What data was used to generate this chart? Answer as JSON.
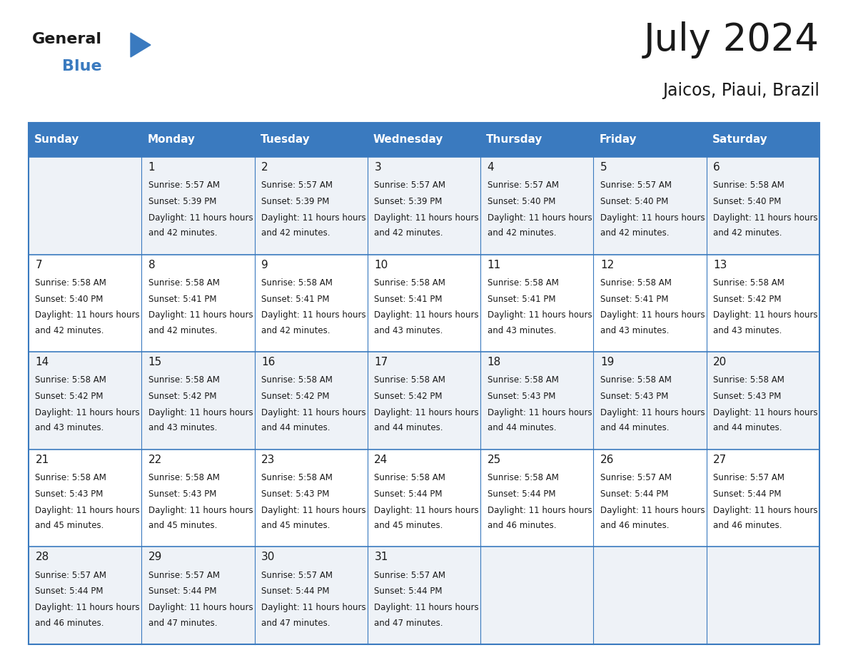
{
  "title": "July 2024",
  "subtitle": "Jaicos, Piaui, Brazil",
  "header_bg": "#3a7abf",
  "header_text": "#ffffff",
  "row_bg_even": "#eef2f7",
  "row_bg_odd": "#ffffff",
  "grid_color": "#3a7abf",
  "text_color": "#1a1a1a",
  "day_headers": [
    "Sunday",
    "Monday",
    "Tuesday",
    "Wednesday",
    "Thursday",
    "Friday",
    "Saturday"
  ],
  "days": [
    {
      "day": 1,
      "col": 1,
      "row": 0,
      "sunrise": "5:57 AM",
      "sunset": "5:39 PM",
      "daylight": "11 hours and 42 minutes."
    },
    {
      "day": 2,
      "col": 2,
      "row": 0,
      "sunrise": "5:57 AM",
      "sunset": "5:39 PM",
      "daylight": "11 hours and 42 minutes."
    },
    {
      "day": 3,
      "col": 3,
      "row": 0,
      "sunrise": "5:57 AM",
      "sunset": "5:39 PM",
      "daylight": "11 hours and 42 minutes."
    },
    {
      "day": 4,
      "col": 4,
      "row": 0,
      "sunrise": "5:57 AM",
      "sunset": "5:40 PM",
      "daylight": "11 hours and 42 minutes."
    },
    {
      "day": 5,
      "col": 5,
      "row": 0,
      "sunrise": "5:57 AM",
      "sunset": "5:40 PM",
      "daylight": "11 hours and 42 minutes."
    },
    {
      "day": 6,
      "col": 6,
      "row": 0,
      "sunrise": "5:58 AM",
      "sunset": "5:40 PM",
      "daylight": "11 hours and 42 minutes."
    },
    {
      "day": 7,
      "col": 0,
      "row": 1,
      "sunrise": "5:58 AM",
      "sunset": "5:40 PM",
      "daylight": "11 hours and 42 minutes."
    },
    {
      "day": 8,
      "col": 1,
      "row": 1,
      "sunrise": "5:58 AM",
      "sunset": "5:41 PM",
      "daylight": "11 hours and 42 minutes."
    },
    {
      "day": 9,
      "col": 2,
      "row": 1,
      "sunrise": "5:58 AM",
      "sunset": "5:41 PM",
      "daylight": "11 hours and 42 minutes."
    },
    {
      "day": 10,
      "col": 3,
      "row": 1,
      "sunrise": "5:58 AM",
      "sunset": "5:41 PM",
      "daylight": "11 hours and 43 minutes."
    },
    {
      "day": 11,
      "col": 4,
      "row": 1,
      "sunrise": "5:58 AM",
      "sunset": "5:41 PM",
      "daylight": "11 hours and 43 minutes."
    },
    {
      "day": 12,
      "col": 5,
      "row": 1,
      "sunrise": "5:58 AM",
      "sunset": "5:41 PM",
      "daylight": "11 hours and 43 minutes."
    },
    {
      "day": 13,
      "col": 6,
      "row": 1,
      "sunrise": "5:58 AM",
      "sunset": "5:42 PM",
      "daylight": "11 hours and 43 minutes."
    },
    {
      "day": 14,
      "col": 0,
      "row": 2,
      "sunrise": "5:58 AM",
      "sunset": "5:42 PM",
      "daylight": "11 hours and 43 minutes."
    },
    {
      "day": 15,
      "col": 1,
      "row": 2,
      "sunrise": "5:58 AM",
      "sunset": "5:42 PM",
      "daylight": "11 hours and 43 minutes."
    },
    {
      "day": 16,
      "col": 2,
      "row": 2,
      "sunrise": "5:58 AM",
      "sunset": "5:42 PM",
      "daylight": "11 hours and 44 minutes."
    },
    {
      "day": 17,
      "col": 3,
      "row": 2,
      "sunrise": "5:58 AM",
      "sunset": "5:42 PM",
      "daylight": "11 hours and 44 minutes."
    },
    {
      "day": 18,
      "col": 4,
      "row": 2,
      "sunrise": "5:58 AM",
      "sunset": "5:43 PM",
      "daylight": "11 hours and 44 minutes."
    },
    {
      "day": 19,
      "col": 5,
      "row": 2,
      "sunrise": "5:58 AM",
      "sunset": "5:43 PM",
      "daylight": "11 hours and 44 minutes."
    },
    {
      "day": 20,
      "col": 6,
      "row": 2,
      "sunrise": "5:58 AM",
      "sunset": "5:43 PM",
      "daylight": "11 hours and 44 minutes."
    },
    {
      "day": 21,
      "col": 0,
      "row": 3,
      "sunrise": "5:58 AM",
      "sunset": "5:43 PM",
      "daylight": "11 hours and 45 minutes."
    },
    {
      "day": 22,
      "col": 1,
      "row": 3,
      "sunrise": "5:58 AM",
      "sunset": "5:43 PM",
      "daylight": "11 hours and 45 minutes."
    },
    {
      "day": 23,
      "col": 2,
      "row": 3,
      "sunrise": "5:58 AM",
      "sunset": "5:43 PM",
      "daylight": "11 hours and 45 minutes."
    },
    {
      "day": 24,
      "col": 3,
      "row": 3,
      "sunrise": "5:58 AM",
      "sunset": "5:44 PM",
      "daylight": "11 hours and 45 minutes."
    },
    {
      "day": 25,
      "col": 4,
      "row": 3,
      "sunrise": "5:58 AM",
      "sunset": "5:44 PM",
      "daylight": "11 hours and 46 minutes."
    },
    {
      "day": 26,
      "col": 5,
      "row": 3,
      "sunrise": "5:57 AM",
      "sunset": "5:44 PM",
      "daylight": "11 hours and 46 minutes."
    },
    {
      "day": 27,
      "col": 6,
      "row": 3,
      "sunrise": "5:57 AM",
      "sunset": "5:44 PM",
      "daylight": "11 hours and 46 minutes."
    },
    {
      "day": 28,
      "col": 0,
      "row": 4,
      "sunrise": "5:57 AM",
      "sunset": "5:44 PM",
      "daylight": "11 hours and 46 minutes."
    },
    {
      "day": 29,
      "col": 1,
      "row": 4,
      "sunrise": "5:57 AM",
      "sunset": "5:44 PM",
      "daylight": "11 hours and 47 minutes."
    },
    {
      "day": 30,
      "col": 2,
      "row": 4,
      "sunrise": "5:57 AM",
      "sunset": "5:44 PM",
      "daylight": "11 hours and 47 minutes."
    },
    {
      "day": 31,
      "col": 3,
      "row": 4,
      "sunrise": "5:57 AM",
      "sunset": "5:44 PM",
      "daylight": "11 hours and 47 minutes."
    }
  ],
  "num_rows": 5,
  "num_cols": 7,
  "fig_width": 11.88,
  "fig_height": 9.18,
  "dpi": 100,
  "logo_general_color": "#1a1a1a",
  "logo_blue_color": "#3a7abf",
  "logo_triangle_color": "#3a7abf",
  "title_fontsize": 38,
  "subtitle_fontsize": 17,
  "header_fontsize": 11,
  "day_num_fontsize": 11,
  "cell_text_fontsize": 8.5
}
